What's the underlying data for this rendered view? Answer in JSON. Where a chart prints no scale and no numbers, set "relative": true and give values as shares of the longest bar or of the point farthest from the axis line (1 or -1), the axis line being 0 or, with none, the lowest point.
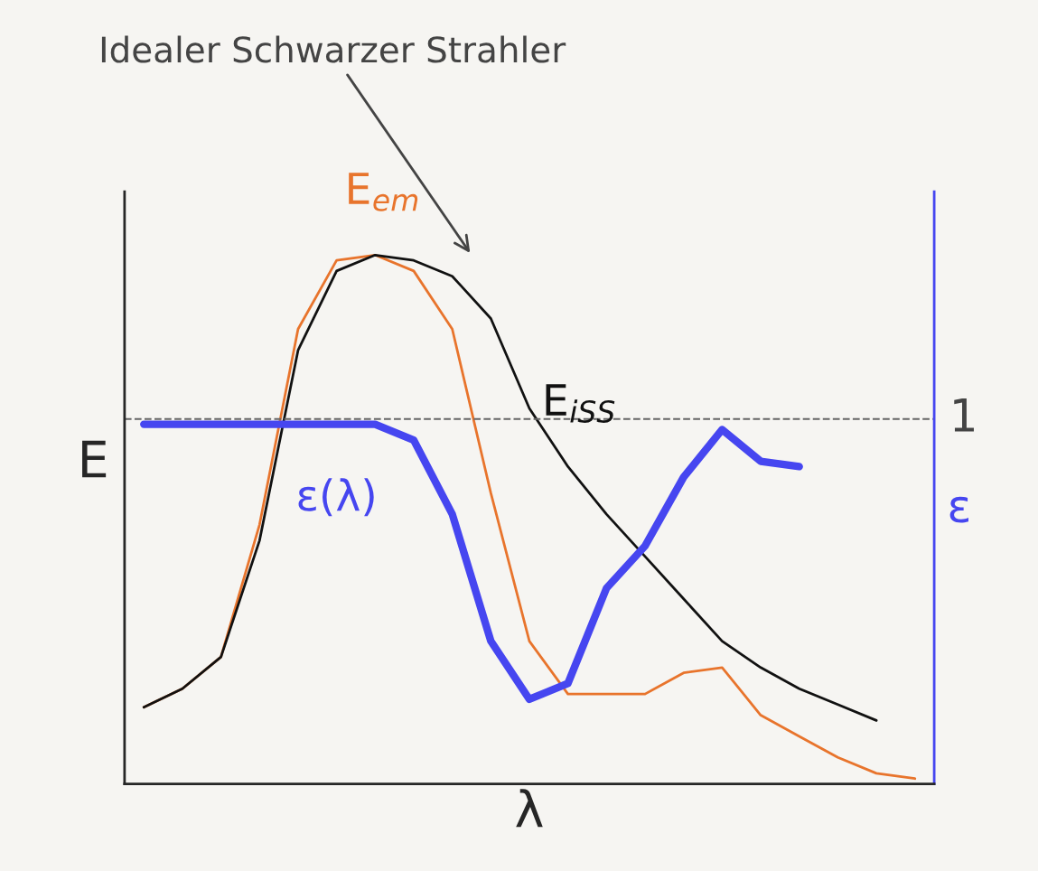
{
  "chart_data": {
    "type": "line",
    "relative": true,
    "xlabel": "λ",
    "ylabel": "E",
    "y2label": "ε",
    "categories": [
      null,
      null,
      null,
      null,
      null,
      null,
      null,
      null,
      null,
      null,
      null,
      null,
      null,
      null,
      null,
      null,
      null,
      null,
      null,
      null,
      null
    ],
    "series": [
      {
        "name": "E$_{em}$",
        "color": "#e8742c",
        "values": [
          0.145,
          0.18,
          0.24,
          0.49,
          0.86,
          0.99,
          1.0,
          0.97,
          0.86,
          0.55,
          0.27,
          0.17,
          0.17,
          0.17,
          0.21,
          0.22,
          0.13,
          0.09,
          0.05,
          0.02,
          0.01
        ]
      },
      {
        "name": "E$_{iSS}$",
        "color": "#111111",
        "values": [
          0.145,
          0.18,
          0.24,
          0.46,
          0.82,
          0.97,
          1.0,
          0.99,
          0.96,
          0.88,
          0.71,
          0.6,
          0.51,
          0.43,
          0.35,
          0.27,
          0.22,
          0.18,
          0.15,
          0.12,
          null
        ]
      },
      {
        "name": "ε(λ)",
        "color": "#4646f0",
        "values": [
          0.68,
          0.68,
          0.68,
          0.68,
          0.68,
          0.68,
          0.68,
          0.65,
          0.51,
          0.27,
          0.16,
          0.19,
          0.37,
          0.45,
          0.58,
          0.67,
          0.61,
          0.6,
          null,
          null,
          null
        ]
      }
    ],
    "ref_lines": [
      {
        "axis": "y",
        "value": 0.69,
        "label": "1",
        "color": "#666666",
        "line_style": "dashed"
      }
    ],
    "annotations": [
      "Idealer Schwarzer Strahler"
    ],
    "legend": false,
    "line_style": "solid"
  }
}
